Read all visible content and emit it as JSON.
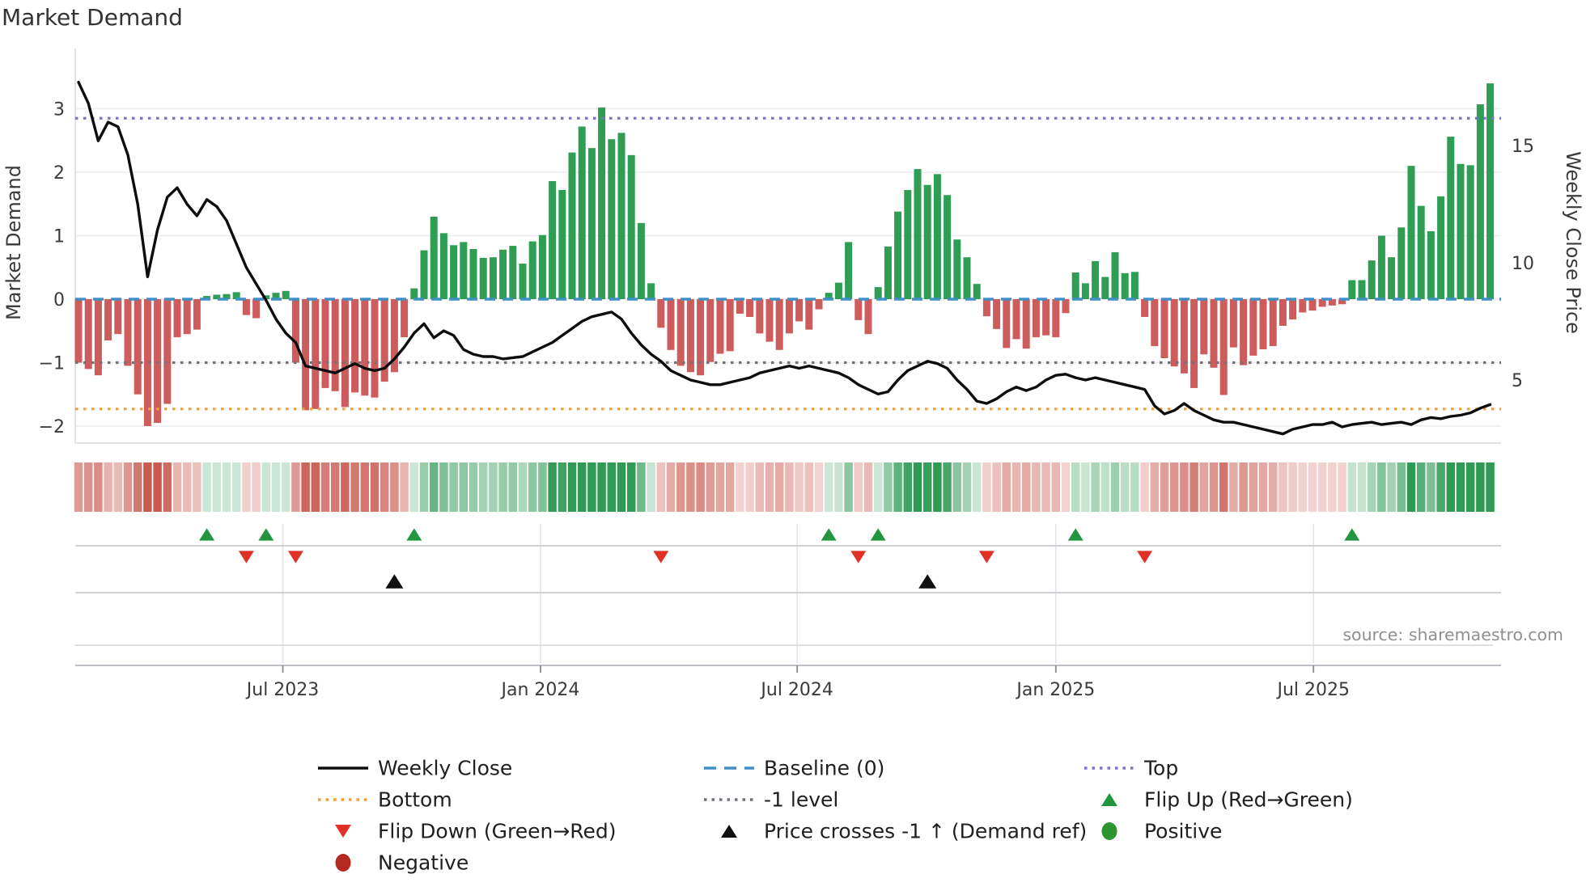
{
  "title": "Market Demand",
  "source_note": "source: sharemaestro.com",
  "axes": {
    "left_label": "Market Demand",
    "right_label": "Weekly Close Price",
    "left_ticks": [
      {
        "value": 3,
        "label": "3"
      },
      {
        "value": 2,
        "label": "2"
      },
      {
        "value": 1,
        "label": "1"
      },
      {
        "value": 0,
        "label": "0"
      },
      {
        "value": -1,
        "label": "−1"
      },
      {
        "value": -2,
        "label": "−2"
      }
    ],
    "right_ticks": [
      {
        "value": 15,
        "label": "15"
      },
      {
        "value": 10,
        "label": "10"
      },
      {
        "value": 5,
        "label": "5"
      }
    ],
    "x_ticks": [
      {
        "week": 20.7,
        "label": "Jul 2023"
      },
      {
        "week": 46.8,
        "label": "Jan 2024"
      },
      {
        "week": 72.8,
        "label": "Jul 2024"
      },
      {
        "week": 99.0,
        "label": "Jan 2025"
      },
      {
        "week": 125.1,
        "label": "Jul 2025"
      }
    ]
  },
  "ref_lines": [
    {
      "name": "top",
      "value": 2.85,
      "style": "dotted",
      "color": "#7a70d2"
    },
    {
      "name": "baseline",
      "value": 0,
      "style": "dashed",
      "color": "#3f8fc8"
    },
    {
      "name": "minus1",
      "value": -1,
      "style": "dotted",
      "color": "#72727c"
    },
    {
      "name": "bottom",
      "value": -1.73,
      "style": "dotted",
      "color": "#f79e2e"
    }
  ],
  "chart_data": {
    "type": "bar",
    "title": "Market Demand",
    "x_mode": "weekly",
    "weeks": 144,
    "ylim_left": [
      -2.4,
      3.95
    ],
    "ylim_right": [
      2.3,
      19.4
    ],
    "grid": true,
    "series": [
      {
        "name": "Market Demand",
        "type": "bar",
        "axis": "left",
        "positive_color": "#2f9e54",
        "negative_color": "#cd5c5c",
        "values": [
          -1.0,
          -1.1,
          -1.2,
          -0.65,
          -0.55,
          -1.05,
          -1.5,
          -2.0,
          -1.95,
          -1.65,
          -0.6,
          -0.55,
          -0.48,
          0.05,
          0.07,
          0.08,
          0.11,
          -0.25,
          -0.3,
          0.06,
          0.1,
          0.13,
          -1.0,
          -1.75,
          -1.73,
          -1.4,
          -1.45,
          -1.7,
          -1.47,
          -1.52,
          -1.55,
          -1.3,
          -1.15,
          -0.6,
          0.17,
          0.77,
          1.3,
          1.04,
          0.85,
          0.9,
          0.79,
          0.65,
          0.66,
          0.78,
          0.84,
          0.56,
          0.91,
          1.01,
          1.86,
          1.72,
          2.31,
          2.72,
          2.38,
          3.02,
          2.52,
          2.62,
          2.27,
          1.2,
          0.25,
          -0.45,
          -0.8,
          -1.05,
          -1.15,
          -1.2,
          -0.99,
          -0.86,
          -0.82,
          -0.23,
          -0.28,
          -0.54,
          -0.67,
          -0.8,
          -0.54,
          -0.35,
          -0.48,
          -0.16,
          0.1,
          0.26,
          0.9,
          -0.33,
          -0.55,
          0.19,
          0.83,
          1.38,
          1.72,
          2.05,
          1.8,
          1.97,
          1.64,
          0.94,
          0.66,
          0.24,
          -0.27,
          -0.47,
          -0.77,
          -0.63,
          -0.78,
          -0.6,
          -0.57,
          -0.6,
          -0.22,
          0.42,
          0.25,
          0.6,
          0.35,
          0.74,
          0.41,
          0.43,
          -0.28,
          -0.74,
          -0.93,
          -1.06,
          -1.17,
          -1.4,
          -0.87,
          -1.08,
          -1.51,
          -0.76,
          -1.04,
          -0.89,
          -0.79,
          -0.74,
          -0.42,
          -0.32,
          -0.21,
          -0.18,
          -0.12,
          -0.1,
          -0.08,
          0.3,
          0.3,
          0.61,
          1.0,
          0.66,
          1.13,
          2.1,
          1.47,
          1.07,
          1.62,
          2.56,
          2.13,
          2.11,
          3.07,
          3.4
        ]
      },
      {
        "name": "Weekly Close",
        "type": "line",
        "axis": "right",
        "color": "#0d0d0d",
        "values": [
          17.7,
          16.8,
          15.2,
          16.0,
          15.8,
          14.6,
          12.5,
          9.4,
          11.4,
          12.8,
          13.2,
          12.5,
          12.0,
          12.7,
          12.4,
          11.8,
          10.8,
          9.8,
          9.1,
          8.4,
          7.6,
          7.0,
          6.6,
          5.6,
          5.5,
          5.4,
          5.3,
          5.5,
          5.7,
          5.5,
          5.4,
          5.5,
          5.9,
          6.4,
          7.0,
          7.4,
          6.8,
          7.1,
          6.9,
          6.3,
          6.1,
          6.0,
          6.0,
          5.9,
          5.95,
          6.0,
          6.2,
          6.4,
          6.6,
          6.9,
          7.2,
          7.5,
          7.7,
          7.8,
          7.9,
          7.6,
          7.0,
          6.5,
          6.1,
          5.8,
          5.4,
          5.2,
          5.0,
          4.9,
          4.8,
          4.8,
          4.9,
          5.0,
          5.1,
          5.3,
          5.4,
          5.5,
          5.6,
          5.5,
          5.6,
          5.5,
          5.4,
          5.3,
          5.1,
          4.8,
          4.6,
          4.4,
          4.5,
          5.0,
          5.4,
          5.6,
          5.8,
          5.7,
          5.5,
          5.0,
          4.6,
          4.1,
          4.0,
          4.2,
          4.5,
          4.7,
          4.55,
          4.7,
          5.0,
          5.2,
          5.25,
          5.1,
          5.0,
          5.1,
          5.0,
          4.9,
          4.8,
          4.7,
          4.6,
          3.9,
          3.55,
          3.7,
          4.0,
          3.7,
          3.5,
          3.3,
          3.2,
          3.2,
          3.1,
          3.0,
          2.9,
          2.8,
          2.7,
          2.9,
          3.0,
          3.1,
          3.1,
          3.2,
          3.0,
          3.1,
          3.15,
          3.2,
          3.1,
          3.15,
          3.2,
          3.1,
          3.3,
          3.4,
          3.35,
          3.45,
          3.5,
          3.6,
          3.8,
          3.95
        ]
      }
    ],
    "markers": {
      "flip_up_rule": "demand sign change negative to positive",
      "flip_down_rule": "demand sign change positive to negative",
      "price_cross_up_weeks": [
        32,
        86
      ],
      "flip_up_color": "#22963e",
      "flip_down_color": "#e03127",
      "price_cross_color": "#111111"
    },
    "heatmap_strip": {
      "source": "demand values",
      "strong_positive": "#2e9a54",
      "strong_negative": "#c85a50"
    }
  },
  "legend": [
    {
      "label": "Weekly Close",
      "type": "line",
      "color": "#0d0d0d"
    },
    {
      "label": "Baseline (0)",
      "type": "dashed",
      "color": "#3f8fc8"
    },
    {
      "label": "Top",
      "type": "dotted",
      "color": "#7a70d2"
    },
    {
      "label": "Bottom",
      "type": "dotted",
      "color": "#f79e2e"
    },
    {
      "label": "-1 level",
      "type": "dotted",
      "color": "#72727c"
    },
    {
      "label": "Flip Up (Red→Green)",
      "type": "tri-up",
      "color": "#22963e"
    },
    {
      "label": "Flip Down (Green→Red)",
      "type": "tri-down",
      "color": "#e03127"
    },
    {
      "label": "Price crosses -1 ↑ (Demand ref)",
      "type": "tri-up",
      "color": "#111111"
    },
    {
      "label": "Positive",
      "type": "circle",
      "color": "#2e9430"
    },
    {
      "label": "Negative",
      "type": "circle",
      "color": "#b42a22"
    }
  ],
  "colors": {
    "grid": "#ebebf0",
    "spine": "#d8d8de",
    "separator": "#c9c9cf",
    "axis_line": "#b5b5bc",
    "tick_text": "#3a3a3a",
    "title_text": "#333333",
    "source_text": "#8f8f8f",
    "legend_text": "#1f1f1f"
  }
}
